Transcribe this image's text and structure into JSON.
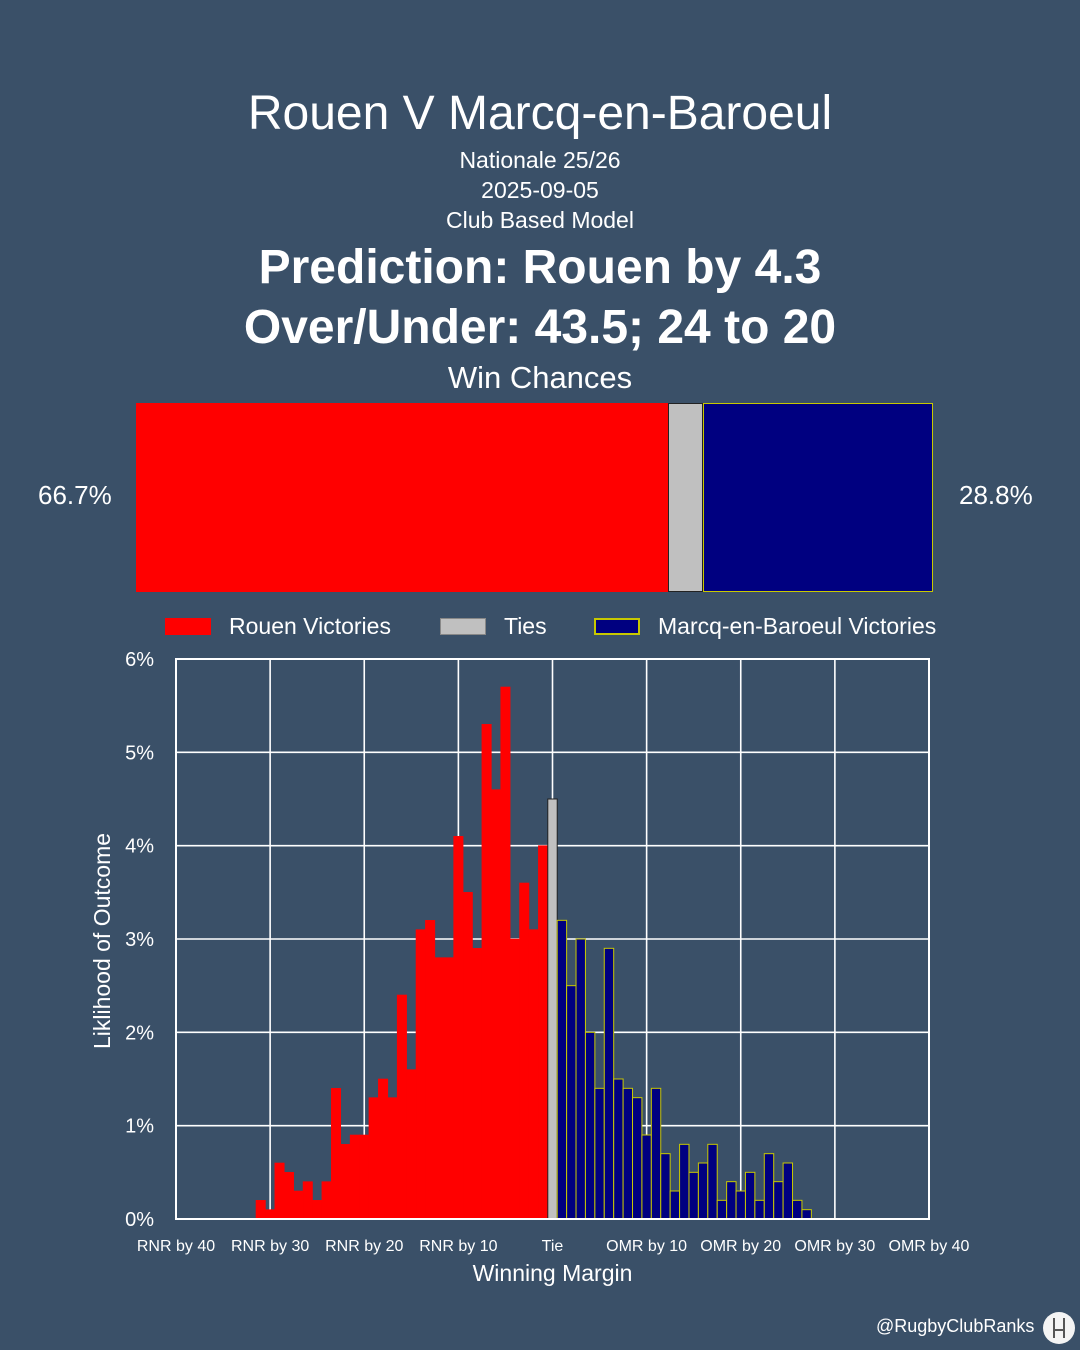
{
  "header": {
    "title": "Rouen V Marcq-en-Baroeul",
    "competition": "Nationale 25/26",
    "date": "2025-09-05",
    "model": "Club Based Model",
    "prediction": "Prediction: Rouen by 4.3",
    "over_under": "Over/Under: 43.5; 24 to 20"
  },
  "win_chances": {
    "title": "Win Chances",
    "home_pct": 66.7,
    "tie_pct": 4.5,
    "away_pct": 28.8,
    "home_label": "66.7%",
    "away_label": "28.8%"
  },
  "legend": {
    "home": "Rouen Victories",
    "tie": "Ties",
    "away": "Marcq-en-Baroeul Victories"
  },
  "colors": {
    "background": "#3a5068",
    "home": "#ff0000",
    "tie": "#c0c0c0",
    "away": "#000080",
    "away_edge": "#c8c800"
  },
  "chart_data": {
    "type": "bar",
    "title": "Win Chances",
    "xlabel": "Winning Margin",
    "ylabel": "Liklihood of Outcome",
    "xlim": [
      -40,
      40
    ],
    "ylim": [
      0,
      6
    ],
    "grid": true,
    "x_ticks": [
      {
        "value": -40,
        "label": "RNR by 40"
      },
      {
        "value": -30,
        "label": "RNR by 30"
      },
      {
        "value": -20,
        "label": "RNR by 20"
      },
      {
        "value": -10,
        "label": "RNR by 10"
      },
      {
        "value": 0,
        "label": "Tie"
      },
      {
        "value": 10,
        "label": "OMR by 10"
      },
      {
        "value": 20,
        "label": "OMR by 20"
      },
      {
        "value": 30,
        "label": "OMR by 30"
      },
      {
        "value": 40,
        "label": "OMR by 40"
      }
    ],
    "y_ticks": [
      {
        "value": 0,
        "label": "0%"
      },
      {
        "value": 1,
        "label": "1%"
      },
      {
        "value": 2,
        "label": "2%"
      },
      {
        "value": 3,
        "label": "3%"
      },
      {
        "value": 4,
        "label": "4%"
      },
      {
        "value": 5,
        "label": "5%"
      },
      {
        "value": 6,
        "label": "6%"
      }
    ],
    "series": [
      {
        "name": "Rouen Victories",
        "margins": [
          -31,
          -30,
          -29,
          -28,
          -27,
          -26,
          -25,
          -24,
          -23,
          -22,
          -21,
          -20,
          -19,
          -18,
          -17,
          -16,
          -15,
          -14,
          -13,
          -12,
          -11,
          -10,
          -9,
          -8,
          -7,
          -6,
          -5,
          -4,
          -3,
          -2,
          -1
        ],
        "values": [
          0.2,
          0.1,
          0.6,
          0.5,
          0.3,
          0.4,
          0.2,
          0.4,
          1.4,
          0.8,
          0.9,
          0.9,
          1.3,
          1.5,
          1.3,
          2.4,
          1.6,
          3.1,
          3.2,
          2.8,
          2.8,
          4.1,
          3.5,
          2.9,
          5.3,
          4.6,
          5.7,
          3.0,
          3.6,
          3.1,
          4.0
        ]
      },
      {
        "name": "Ties",
        "margins": [
          0
        ],
        "values": [
          4.5
        ]
      },
      {
        "name": "Marcq-en-Baroeul Victories",
        "margins": [
          1,
          2,
          3,
          4,
          5,
          6,
          7,
          8,
          9,
          10,
          11,
          12,
          13,
          14,
          15,
          16,
          17,
          18,
          19,
          20,
          21,
          22,
          23,
          24,
          25,
          26,
          27
        ],
        "values": [
          3.2,
          2.5,
          3.0,
          2.0,
          1.4,
          2.9,
          1.5,
          1.4,
          1.3,
          0.9,
          1.4,
          0.7,
          0.3,
          0.8,
          0.5,
          0.6,
          0.8,
          0.2,
          0.4,
          0.3,
          0.5,
          0.2,
          0.7,
          0.4,
          0.6,
          0.2,
          0.1
        ]
      }
    ]
  },
  "footer": {
    "handle": "@RugbyClubRanks",
    "logo_icon": "rugby-posts-icon"
  }
}
